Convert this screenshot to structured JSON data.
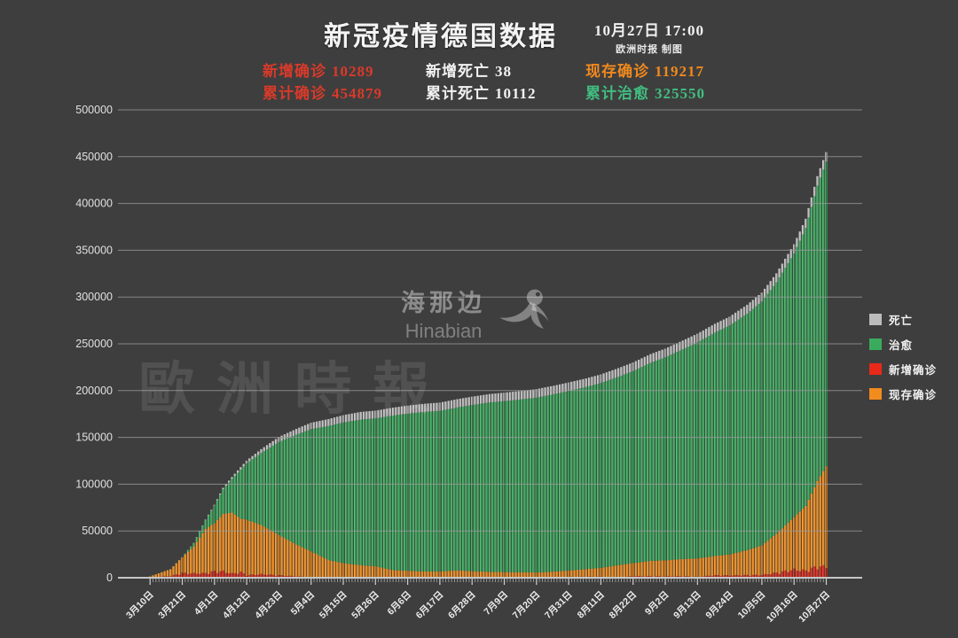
{
  "header": {
    "title": "新冠疫情德国数据",
    "datetime": "10月27日  17:00",
    "credit": "欧洲时报 制图"
  },
  "stats": [
    {
      "label": "新增确诊",
      "value": "10289",
      "color": "#d93a2a"
    },
    {
      "label": "累计确诊",
      "value": "454879",
      "color": "#d93a2a"
    },
    {
      "label": "新增死亡",
      "value": "38",
      "color": "#f2f2f2"
    },
    {
      "label": "累计死亡",
      "value": "10112",
      "color": "#f2f2f2"
    },
    {
      "label": "现存确诊",
      "value": "119217",
      "color": "#f0891e"
    },
    {
      "label": "累计治愈",
      "value": "325550",
      "color": "#41bd80"
    }
  ],
  "watermarks": {
    "center_cn": "海那边",
    "center_en": "Hinabian",
    "left": "歐洲時報"
  },
  "legend": [
    {
      "label": "死亡",
      "color": "#bcbcbc"
    },
    {
      "label": "治愈",
      "color": "#3aab5c"
    },
    {
      "label": "新增确诊",
      "color": "#e8291a"
    },
    {
      "label": "现存确诊",
      "color": "#f28c1e"
    }
  ],
  "chart_data": {
    "type": "bar",
    "stacked": true,
    "title": "新冠疫情德国数据",
    "xlabel": "",
    "ylabel": "",
    "ylim": [
      0,
      500000
    ],
    "y_tick_step": 50000,
    "grid": true,
    "legend_position": "right",
    "days": 232,
    "x_start": "3月10日",
    "x_end": "10月27日",
    "x_tick_interval_days": 11,
    "x_tick_labels": [
      "3月10日",
      "3月21日",
      "4月1日",
      "4月12日",
      "4月23日",
      "5月4日",
      "5月15日",
      "5月26日",
      "6月6日",
      "6月17日",
      "6月28日",
      "7月9日",
      "7月20日",
      "7月31日",
      "8月11日",
      "8月22日",
      "9月2日",
      "9月13日",
      "9月24日",
      "10月5日",
      "10月16日",
      "10月27日"
    ],
    "stack_order_bottom_to_top": [
      "新增确诊",
      "现存确诊",
      "治愈",
      "死亡"
    ],
    "series_gradients": {
      "new": [
        "#f4685c",
        "#e8291a",
        "#c01f12"
      ],
      "active": [
        "#f8b96a",
        "#f28c1e",
        "#d97a10"
      ],
      "cured": [
        "#7ccf96",
        "#3aab5c",
        "#2f8f4b"
      ],
      "deaths": [
        "#e2e2e2",
        "#bcbcbc",
        "#9a9a9a"
      ]
    },
    "keyframes": {
      "day": [
        0,
        7,
        11,
        15,
        19,
        22,
        25,
        28,
        31,
        33,
        38,
        44,
        50,
        55,
        61,
        66,
        72,
        77,
        83,
        88,
        94,
        99,
        105,
        110,
        116,
        121,
        127,
        132,
        138,
        143,
        149,
        154,
        160,
        165,
        171,
        176,
        182,
        187,
        193,
        198,
        204,
        209,
        214,
        220,
        224,
        228,
        231
      ],
      "active": [
        1440,
        9170,
        21900,
        33570,
        52360,
        58350,
        68250,
        69570,
        63170,
        61930,
        56330,
        45660,
        35430,
        28200,
        18860,
        15590,
        13340,
        12310,
        8100,
        7510,
        6640,
        6750,
        7870,
        7040,
        6320,
        6040,
        5860,
        5590,
        6550,
        7760,
        9190,
        10590,
        13580,
        15590,
        18030,
        18640,
        20040,
        20650,
        23310,
        24880,
        29520,
        34530,
        47010,
        64720,
        76840,
        103450,
        119217
      ],
      "cured": [
        18,
        67,
        230,
        3550,
        9210,
        18700,
        26400,
        36080,
        52410,
        60300,
        77000,
        99400,
        117400,
        130600,
        143300,
        150300,
        155700,
        158000,
        165200,
        167800,
        170600,
        171600,
        174100,
        177500,
        181000,
        182700,
        184800,
        186900,
        189600,
        191800,
        194700,
        197500,
        201200,
        205200,
        211700,
        216900,
        224100,
        230800,
        238700,
        244700,
        252700,
        260600,
        268700,
        281900,
        296900,
        315700,
        325550
      ],
      "deaths": [
        3,
        24,
        84,
        206,
        525,
        931,
        1444,
        2016,
        2607,
        2871,
        4110,
        5320,
        6290,
        6870,
        7420,
        7880,
        8170,
        8260,
        8510,
        8670,
        8780,
        8830,
        8900,
        8960,
        9010,
        9050,
        9070,
        9080,
        9120,
        9140,
        9180,
        9200,
        9230,
        9260,
        9290,
        9310,
        9340,
        9370,
        9410,
        9440,
        9500,
        9550,
        9620,
        9770,
        9910,
        10030,
        10112
      ],
      "new": [
        310,
        1700,
        4530,
        4120,
        4400,
        6160,
        6080,
        4000,
        5320,
        2540,
        3380,
        2340,
        1300,
        680,
        560,
        910,
        460,
        430,
        330,
        410,
        260,
        350,
        500,
        260,
        420,
        360,
        350,
        250,
        310,
        900,
        1050,
        970,
        560,
        1430,
        1480,
        1260,
        1500,
        950,
        2300,
        2130,
        2500,
        2640,
        4720,
        7830,
        6870,
        11000,
        10289
      ]
    },
    "final_values": {
      "新增确诊": 10289,
      "累计确诊": 454879,
      "新增死亡": 38,
      "累计死亡": 10112,
      "现存确诊": 119217,
      "累计治愈": 325550
    }
  }
}
